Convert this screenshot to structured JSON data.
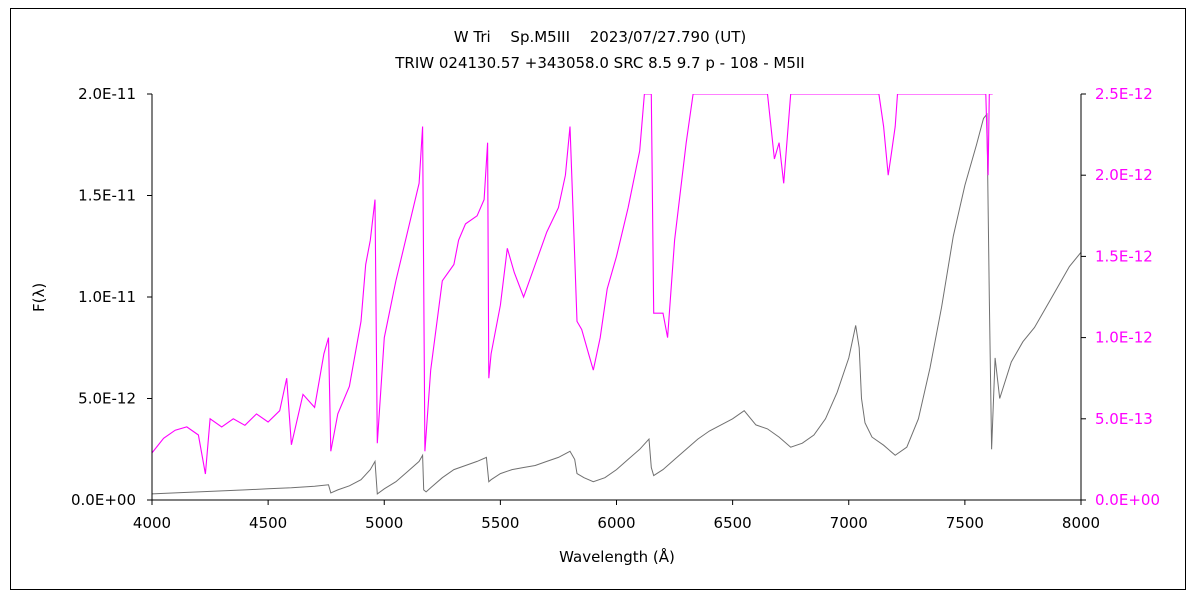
{
  "chart_data": {
    "type": "line",
    "title": "W Tri　 Sp.M5III　 2023/07/27.790 (UT)",
    "subtitle": "TRIW 024130.57 +343058.0 SRC 8.5 9.7 p - 108 - M5II",
    "xlabel": "Wavelength (Å)",
    "ylabel": "F(λ)",
    "xlim": [
      4000,
      8000
    ],
    "ylim_left": [
      0,
      2e-11
    ],
    "ylim_right": [
      0,
      2.5e-12
    ],
    "x_ticks": [
      "4000",
      "4500",
      "5000",
      "5500",
      "6000",
      "6500",
      "7000",
      "7500",
      "8000"
    ],
    "y_ticks_left": [
      "0.0E+00",
      "5.0E-12",
      "1.0E-11",
      "1.5E-11",
      "2.0E-11"
    ],
    "y_ticks_right": [
      "0.0E+00",
      "5.0E-13",
      "1.0E-12",
      "1.5E-12",
      "2.0E-12",
      "2.5E-12"
    ],
    "grid": false,
    "legend": "none",
    "series": [
      {
        "axis": "left",
        "color": "#707070",
        "x": [
          4000,
          4100,
          4200,
          4300,
          4400,
          4500,
          4600,
          4700,
          4760,
          4770,
          4800,
          4850,
          4900,
          4940,
          4960,
          4970,
          5000,
          5050,
          5100,
          5150,
          5165,
          5170,
          5180,
          5200,
          5250,
          5300,
          5350,
          5400,
          5440,
          5450,
          5460,
          5500,
          5550,
          5600,
          5650,
          5700,
          5750,
          5800,
          5820,
          5830,
          5860,
          5900,
          5950,
          6000,
          6050,
          6100,
          6140,
          6150,
          6160,
          6200,
          6250,
          6300,
          6350,
          6400,
          6450,
          6500,
          6550,
          6600,
          6650,
          6700,
          6750,
          6800,
          6850,
          6900,
          6950,
          7000,
          7030,
          7045,
          7055,
          7070,
          7100,
          7150,
          7200,
          7250,
          7300,
          7350,
          7400,
          7450,
          7500,
          7550,
          7580,
          7595,
          7605,
          7615,
          7630,
          7650,
          7700,
          7750,
          7800,
          7850,
          7900,
          7950,
          8000
        ],
        "y": [
          3e-13,
          3.5e-13,
          4e-13,
          4.5e-13,
          5e-13,
          5.5e-13,
          6e-13,
          6.8e-13,
          7.5e-13,
          3.5e-13,
          5e-13,
          7e-13,
          1e-12,
          1.5e-12,
          1.9e-12,
          3e-13,
          5.5e-13,
          9e-13,
          1.4e-12,
          1.9e-12,
          2.2e-12,
          5e-13,
          4e-13,
          6e-13,
          1.1e-12,
          1.5e-12,
          1.7e-12,
          1.9e-12,
          2.1e-12,
          9e-13,
          1e-12,
          1.3e-12,
          1.5e-12,
          1.6e-12,
          1.7e-12,
          1.9e-12,
          2.1e-12,
          2.4e-12,
          2e-12,
          1.3e-12,
          1.1e-12,
          9e-13,
          1.1e-12,
          1.5e-12,
          2e-12,
          2.5e-12,
          3e-12,
          1.6e-12,
          1.2e-12,
          1.5e-12,
          2e-12,
          2.5e-12,
          3e-12,
          3.4e-12,
          3.7e-12,
          4e-12,
          4.4e-12,
          3.7e-12,
          3.5e-12,
          3.1e-12,
          2.6e-12,
          2.8e-12,
          3.2e-12,
          4e-12,
          5.3e-12,
          7e-12,
          8.6e-12,
          7.5e-12,
          5e-12,
          3.8e-12,
          3.1e-12,
          2.7e-12,
          2.2e-12,
          2.6e-12,
          4e-12,
          6.5e-12,
          9.5e-12,
          1.3e-11,
          1.55e-11,
          1.75e-11,
          1.88e-11,
          1.9e-11,
          1e-11,
          2.5e-12,
          7e-12,
          5e-12,
          6.8e-12,
          7.8e-12,
          8.5e-12,
          9.5e-12,
          1.05e-11,
          1.15e-11,
          1.22e-11
        ]
      },
      {
        "axis": "right",
        "color": "#ff00ff",
        "x": [
          4000,
          4050,
          4100,
          4150,
          4200,
          4230,
          4250,
          4300,
          4350,
          4400,
          4450,
          4500,
          4550,
          4580,
          4600,
          4650,
          4700,
          4740,
          4760,
          4770,
          4800,
          4850,
          4900,
          4920,
          4940,
          4960,
          4970,
          5000,
          5050,
          5100,
          5150,
          5165,
          5175,
          5200,
          5250,
          5300,
          5320,
          5350,
          5400,
          5430,
          5445,
          5450,
          5460,
          5500,
          5530,
          5560,
          5600,
          5650,
          5700,
          5750,
          5780,
          5800,
          5820,
          5830,
          5850,
          5880,
          5900,
          5930,
          5960,
          6000,
          6050,
          6100,
          6120,
          6150,
          6160,
          6200,
          6220,
          6250,
          6300,
          6330,
          6360,
          6650,
          6680,
          6700,
          6720,
          6750,
          7130,
          7150,
          7170,
          7180,
          7200,
          7210,
          7590,
          7600,
          7605,
          7620
        ],
        "y": [
          2.9e-13,
          3.8e-13,
          4.3e-13,
          4.5e-13,
          4e-13,
          1.6e-13,
          5e-13,
          4.5e-13,
          5e-13,
          4.6e-13,
          5.3e-13,
          4.8e-13,
          5.5e-13,
          7.5e-13,
          3.4e-13,
          6.5e-13,
          5.7e-13,
          9e-13,
          1e-12,
          3e-13,
          5.3e-13,
          7e-13,
          1.1e-12,
          1.45e-12,
          1.6e-12,
          1.85e-12,
          3.5e-13,
          1e-12,
          1.35e-12,
          1.65e-12,
          1.95e-12,
          2.3e-12,
          3e-13,
          8e-13,
          1.35e-12,
          1.45e-12,
          1.6e-12,
          1.7e-12,
          1.75e-12,
          1.85e-12,
          2.2e-12,
          7.5e-13,
          9e-13,
          1.2e-12,
          1.55e-12,
          1.4e-12,
          1.25e-12,
          1.45e-12,
          1.65e-12,
          1.8e-12,
          2e-12,
          2.3e-12,
          1.5e-12,
          1.1e-12,
          1.05e-12,
          9e-13,
          8e-13,
          1e-12,
          1.3e-12,
          1.5e-12,
          1.8e-12,
          2.15e-12,
          2.5e-12,
          2.5e-12,
          1.15e-12,
          1.15e-12,
          1e-12,
          1.6e-12,
          2.2e-12,
          2.5e-12,
          2.5e-12,
          2.5e-12,
          2.1e-12,
          2.2e-12,
          1.95e-12,
          2.5e-12,
          2.5e-12,
          2.3e-12,
          2e-12,
          2.1e-12,
          2.3e-12,
          2.5e-12,
          2.5e-12,
          2e-12,
          2.5e-12,
          2.5e-12
        ]
      }
    ]
  }
}
